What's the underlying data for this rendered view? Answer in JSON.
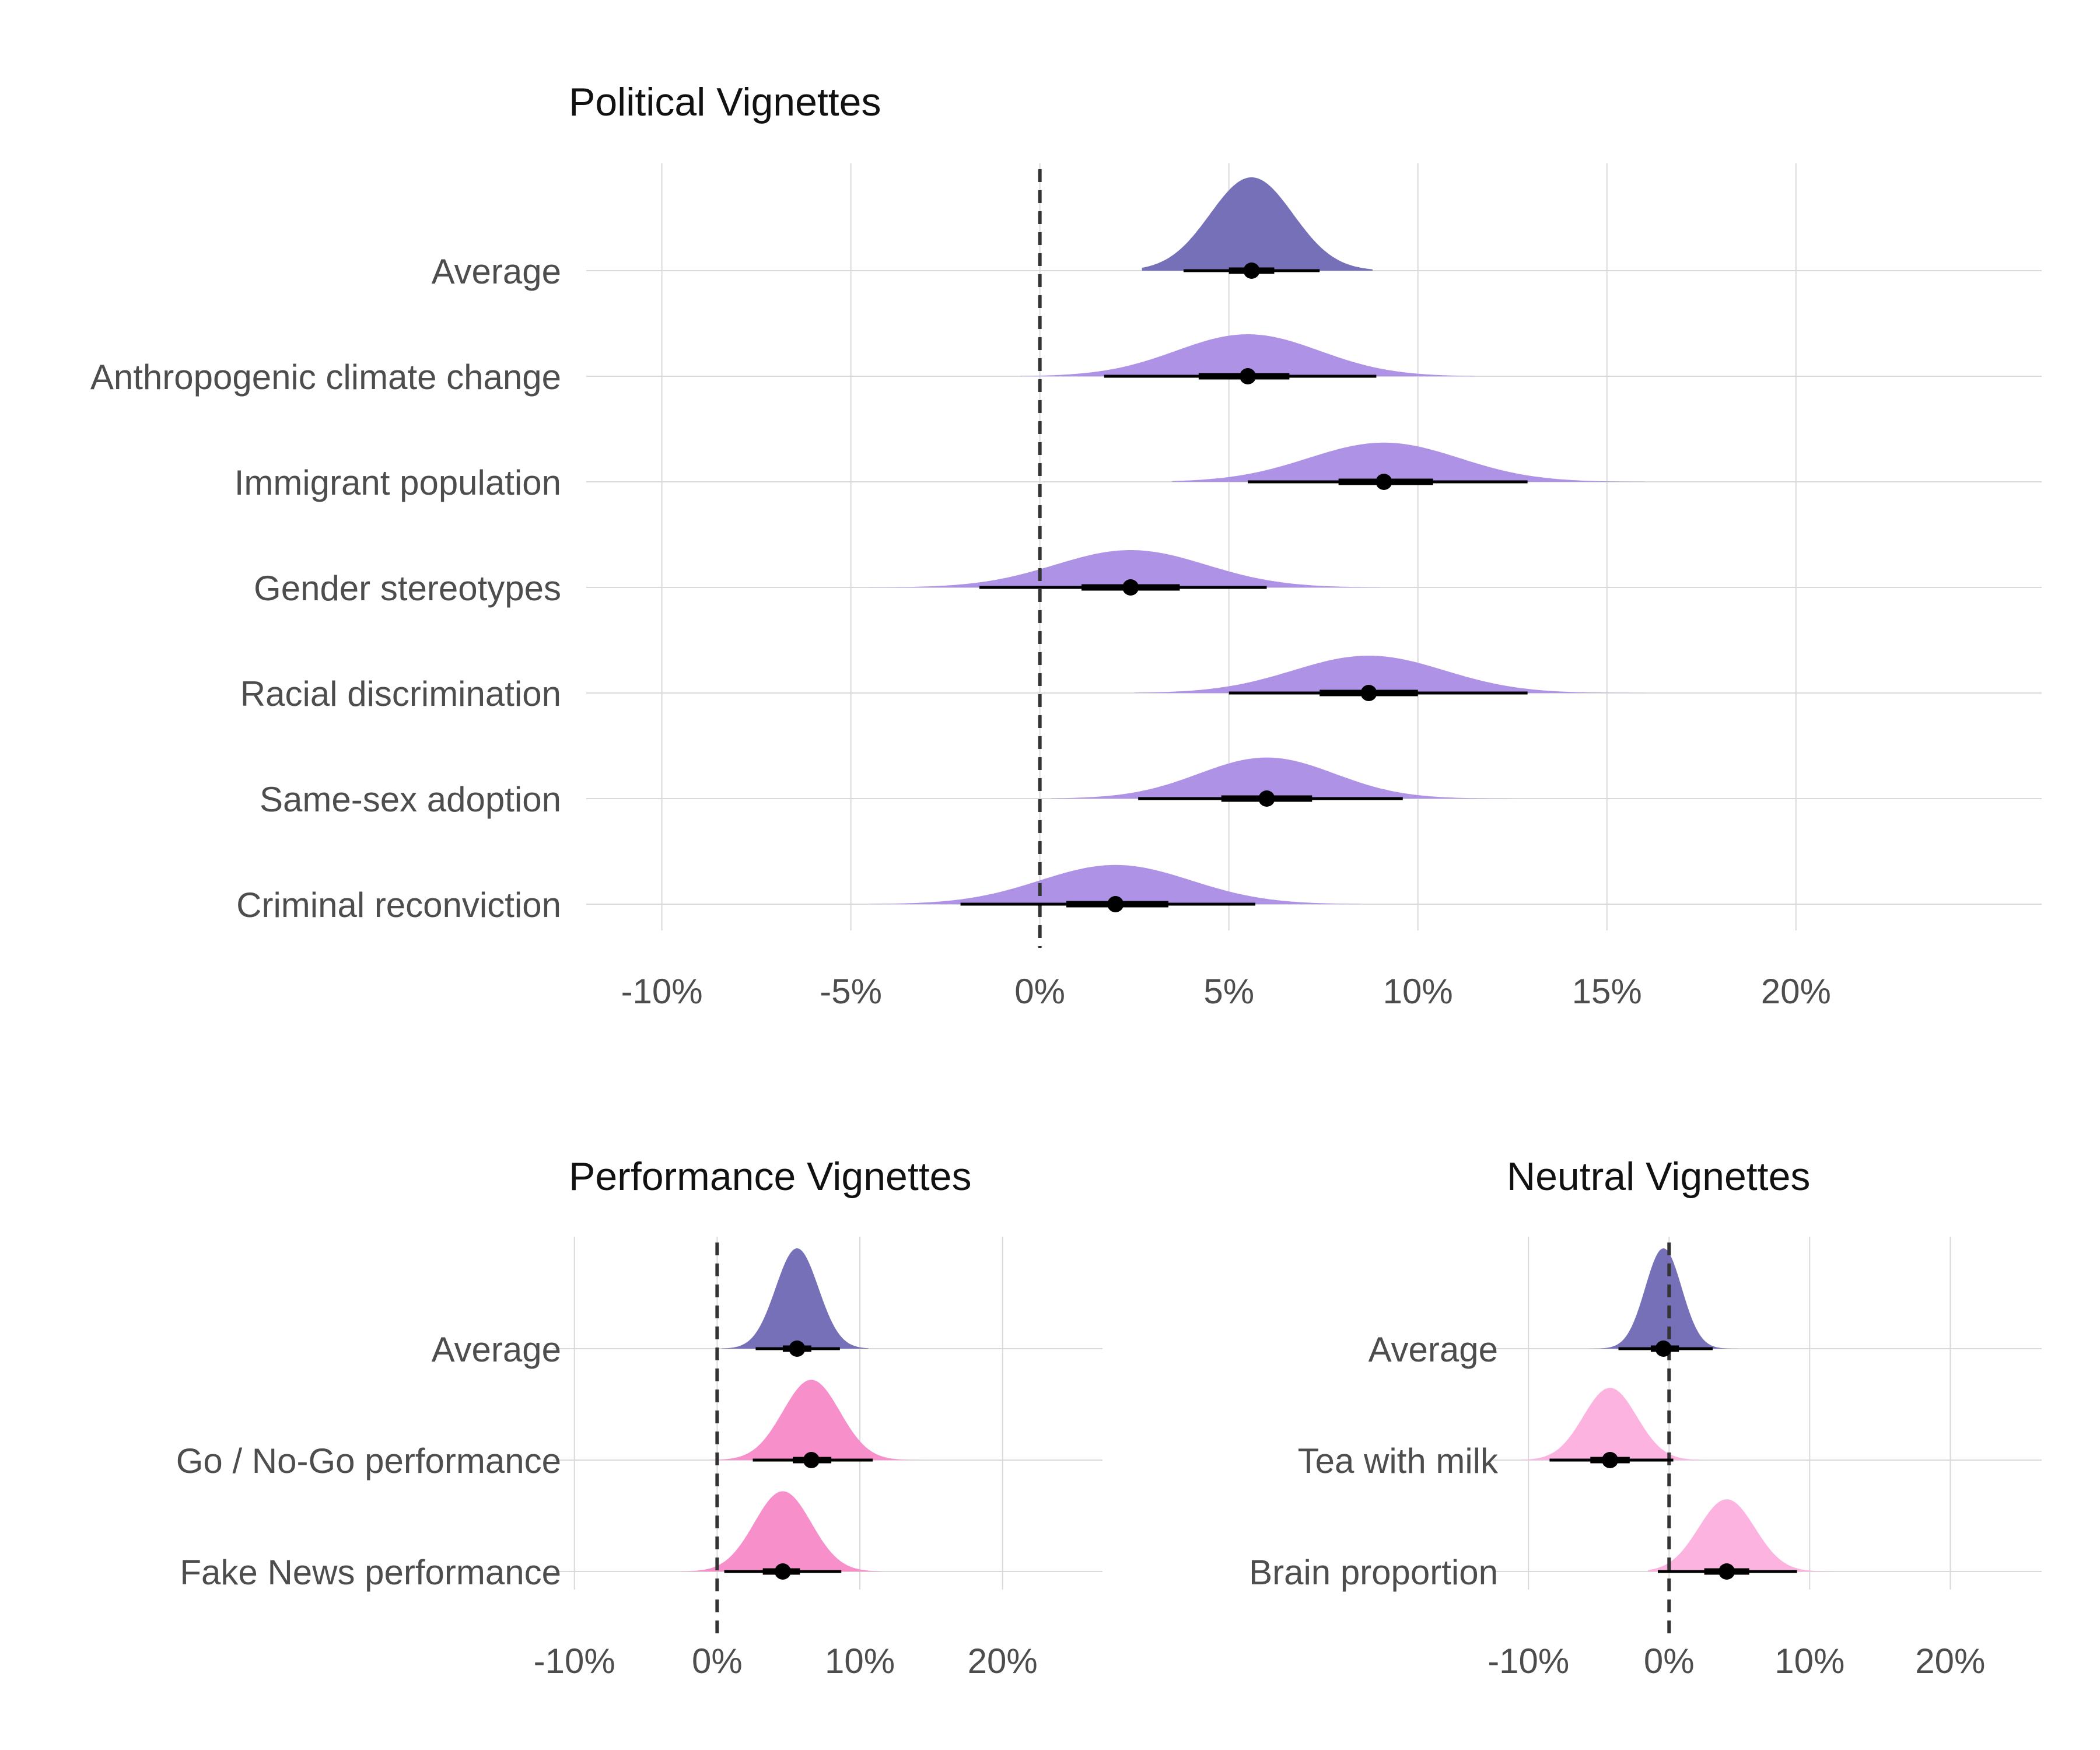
{
  "colors": {
    "average": "#7570b7",
    "political": "#ae92e6",
    "performance": "#f68fca",
    "neutral": "#fcb3e0",
    "grid": "#d9d9d9",
    "zero_line": "#333333",
    "interval": "#000000"
  },
  "chart_data": [
    {
      "type": "ridgeline",
      "title": "Political Vignettes",
      "xlim": [
        -12,
        26.5
      ],
      "xticks": [
        -10,
        -5,
        0,
        5,
        10,
        15,
        20
      ],
      "xtick_labels": [
        "-10%",
        "-5%",
        "0%",
        "5%",
        "10%",
        "15%",
        "20%"
      ],
      "reference_line": 0,
      "grid": true,
      "series": [
        {
          "label": "Average",
          "group": "average",
          "point": 5.6,
          "ci66": [
            5.0,
            6.2
          ],
          "ci95": [
            3.8,
            7.4
          ],
          "sd": 1.1,
          "peak": 1.0,
          "density_min": 2.7,
          "density_max": 8.8
        },
        {
          "label": "Anthropogenic climate change",
          "group": "political",
          "point": 5.5,
          "ci66": [
            4.2,
            6.6
          ],
          "ci95": [
            1.7,
            8.9
          ],
          "sd": 1.9,
          "peak": 0.45,
          "density_min": -0.5,
          "density_max": 11.5
        },
        {
          "label": "Immigrant population",
          "group": "political",
          "point": 9.1,
          "ci66": [
            7.9,
            10.4
          ],
          "ci95": [
            5.5,
            12.9
          ],
          "sd": 2.0,
          "peak": 0.42,
          "density_min": 3.5,
          "density_max": 16.0
        },
        {
          "label": "Gender stereotypes",
          "group": "political",
          "point": 2.4,
          "ci66": [
            1.1,
            3.7
          ],
          "ci95": [
            -1.6,
            6.0
          ],
          "sd": 2.0,
          "peak": 0.4,
          "density_min": -4.5,
          "density_max": 9.0
        },
        {
          "label": "Racial discrimination",
          "group": "political",
          "point": 8.7,
          "ci66": [
            7.4,
            10.0
          ],
          "ci95": [
            5.0,
            12.9
          ],
          "sd": 2.0,
          "peak": 0.4,
          "density_min": 2.5,
          "density_max": 16.0
        },
        {
          "label": "Same-sex adoption",
          "group": "political",
          "point": 6.0,
          "ci66": [
            4.8,
            7.2
          ],
          "ci95": [
            2.6,
            9.6
          ],
          "sd": 1.8,
          "peak": 0.44,
          "density_min": 0.3,
          "density_max": 12.5
        },
        {
          "label": "Criminal reconviction",
          "group": "political",
          "point": 2.0,
          "ci66": [
            0.7,
            3.4
          ],
          "ci95": [
            -2.1,
            5.7
          ],
          "sd": 2.0,
          "peak": 0.42,
          "density_min": -4.5,
          "density_max": 8.5
        }
      ]
    },
    {
      "type": "ridgeline",
      "title": "Performance Vignettes",
      "xlim": [
        -11.5,
        27
      ],
      "xticks": [
        -10,
        0,
        10,
        20
      ],
      "xtick_labels": [
        "-10%",
        "0%",
        "10%",
        "20%"
      ],
      "reference_line": 0,
      "grid": true,
      "series": [
        {
          "label": "Average",
          "group": "average",
          "point": 5.6,
          "ci66": [
            4.6,
            6.6
          ],
          "ci95": [
            2.7,
            8.6
          ],
          "sd": 1.5,
          "peak": 1.0,
          "density_min": 0.3,
          "density_max": 10.6
        },
        {
          "label": "Go / No-Go performance",
          "group": "performance",
          "point": 6.6,
          "ci66": [
            5.3,
            8.0
          ],
          "ci95": [
            2.5,
            10.9
          ],
          "sd": 2.0,
          "peak": 0.8,
          "density_min": -0.5,
          "density_max": 14.5
        },
        {
          "label": "Fake News performance",
          "group": "performance",
          "point": 4.6,
          "ci66": [
            3.2,
            5.8
          ],
          "ci95": [
            0.5,
            8.7
          ],
          "sd": 2.0,
          "peak": 0.8,
          "density_min": -2.5,
          "density_max": 11.5
        }
      ]
    },
    {
      "type": "ridgeline",
      "title": "Neutral Vignettes",
      "xlim": [
        -12.5,
        26.5
      ],
      "xticks": [
        -10,
        0,
        10,
        20
      ],
      "xtick_labels": [
        "-10%",
        "0%",
        "10%",
        "20%"
      ],
      "reference_line": 0,
      "grid": true,
      "series": [
        {
          "label": "Average",
          "group": "average",
          "point": -0.4,
          "ci66": [
            -1.3,
            0.7
          ],
          "ci95": [
            -3.6,
            3.1
          ],
          "sd": 1.3,
          "peak": 1.0,
          "density_min": -6.5,
          "density_max": 6.0
        },
        {
          "label": "Tea with milk",
          "group": "neutral",
          "point": -4.2,
          "ci66": [
            -5.6,
            -2.8
          ],
          "ci95": [
            -8.5,
            0.3
          ],
          "sd": 1.9,
          "peak": 0.72,
          "density_min": -10.5,
          "density_max": 2.5
        },
        {
          "label": "Brain proportion",
          "group": "neutral",
          "point": 4.1,
          "ci66": [
            2.5,
            5.7
          ],
          "ci95": [
            -0.8,
            9.1
          ],
          "sd": 2.0,
          "peak": 0.72,
          "density_min": -1.5,
          "density_max": 11.5
        }
      ]
    }
  ]
}
